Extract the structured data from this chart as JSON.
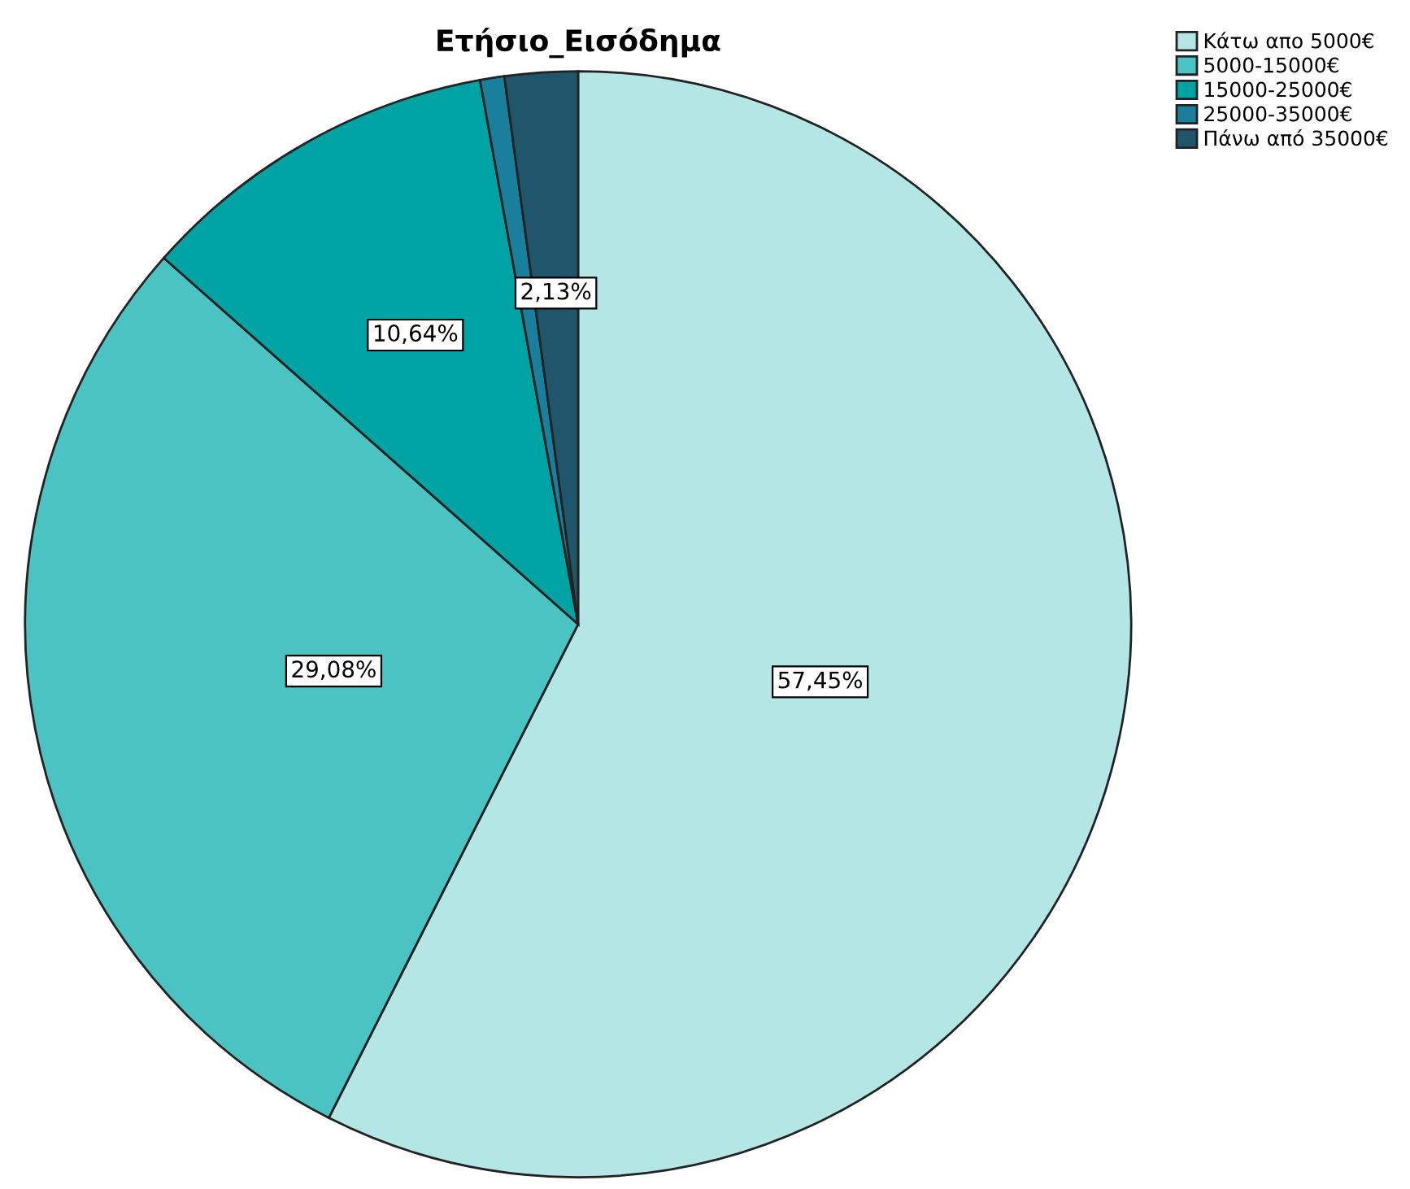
{
  "chart_data": {
    "type": "pie",
    "title": "Ετήσιο_Εισόδημα",
    "categories": [
      "Κάτω απο 5000€",
      "5000-15000€",
      "15000-25000€",
      "25000-35000€",
      "Πάνω από 35000€"
    ],
    "values": [
      57.45,
      29.08,
      10.64,
      0.71,
      2.13
    ],
    "colors": [
      "#b4e6e6",
      "#4cc3c3",
      "#00a3a3",
      "#1a7f9c",
      "#1f566b"
    ],
    "value_labels": [
      "57,45%",
      "29,08%",
      "10,64%",
      null,
      "2,13%"
    ],
    "legend": "top right"
  }
}
